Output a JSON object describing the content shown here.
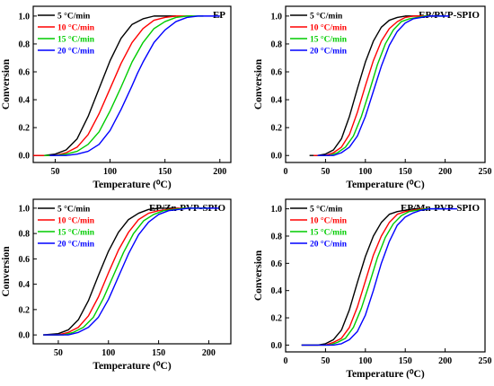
{
  "figure": {
    "panels": [
      "EP",
      "EP/PVP-SPIO",
      "EP/Zn-PVP-SPIO",
      "EP/Mn-PVP-SPIO"
    ]
  },
  "chart_data": [
    {
      "type": "line",
      "title": "EP",
      "xlabel": "Temperature (⁰C)",
      "ylabel": "Conversion",
      "xlim": [
        30,
        210
      ],
      "ylim": [
        -0.05,
        1.07
      ],
      "xticks": [
        "50",
        "100",
        "150",
        "200"
      ],
      "yticks": [
        "0.0",
        "0.2",
        "0.4",
        "0.6",
        "0.8",
        "1.0"
      ],
      "grid": false,
      "legend": "top-left",
      "series": [
        {
          "name": "5 °C/min",
          "color": "#000000",
          "x": [
            30,
            40,
            50,
            60,
            70,
            80,
            90,
            95,
            100,
            110,
            120,
            130,
            140,
            150,
            160
          ],
          "y": [
            0.0,
            0.0,
            0.01,
            0.04,
            0.12,
            0.28,
            0.48,
            0.58,
            0.68,
            0.84,
            0.94,
            0.98,
            1.0,
            1.0,
            1.0
          ]
        },
        {
          "name": "10 °C/min",
          "color": "#ff0000",
          "x": [
            30,
            40,
            50,
            60,
            70,
            80,
            90,
            100,
            105,
            110,
            120,
            130,
            140,
            150,
            160,
            175
          ],
          "y": [
            0.0,
            0.0,
            0.0,
            0.02,
            0.06,
            0.15,
            0.3,
            0.48,
            0.57,
            0.66,
            0.81,
            0.91,
            0.97,
            0.99,
            1.0,
            1.0
          ]
        },
        {
          "name": "15 °C/min",
          "color": "#00cc00",
          "x": [
            40,
            50,
            60,
            70,
            80,
            90,
            100,
            110,
            115,
            120,
            130,
            140,
            150,
            160,
            170,
            185
          ],
          "y": [
            0.0,
            0.0,
            0.01,
            0.03,
            0.08,
            0.17,
            0.32,
            0.49,
            0.58,
            0.67,
            0.81,
            0.91,
            0.96,
            0.99,
            1.0,
            1.0
          ]
        },
        {
          "name": "20 °C/min",
          "color": "#0000ff",
          "x": [
            45,
            60,
            70,
            80,
            90,
            100,
            110,
            120,
            125,
            130,
            140,
            150,
            160,
            170,
            180,
            190,
            200
          ],
          "y": [
            0.0,
            0.0,
            0.01,
            0.03,
            0.08,
            0.18,
            0.33,
            0.5,
            0.59,
            0.67,
            0.81,
            0.9,
            0.96,
            0.99,
            1.0,
            1.0,
            1.0
          ]
        }
      ]
    },
    {
      "type": "line",
      "title": "EP/PVP-SPIO",
      "xlabel": "Temperature (⁰C)",
      "ylabel": "Conversion",
      "xlim": [
        0,
        250
      ],
      "ylim": [
        -0.05,
        1.07
      ],
      "xticks": [
        "0",
        "50",
        "100",
        "150",
        "200",
        "250"
      ],
      "yticks": [
        "0.0",
        "0.2",
        "0.4",
        "0.6",
        "0.8",
        "1.0"
      ],
      "grid": false,
      "legend": "top-left",
      "series": [
        {
          "name": "5 °C/min",
          "color": "#000000",
          "x": [
            30,
            40,
            50,
            60,
            70,
            80,
            90,
            100,
            110,
            120,
            130,
            140,
            150,
            160,
            170
          ],
          "y": [
            0.0,
            0.0,
            0.01,
            0.04,
            0.12,
            0.28,
            0.48,
            0.67,
            0.82,
            0.92,
            0.97,
            0.99,
            1.0,
            1.0,
            1.0
          ]
        },
        {
          "name": "10 °C/min",
          "color": "#ff0000",
          "x": [
            35,
            50,
            60,
            70,
            80,
            90,
            100,
            110,
            120,
            130,
            140,
            150,
            160,
            170,
            180,
            190
          ],
          "y": [
            0.0,
            0.0,
            0.02,
            0.06,
            0.15,
            0.31,
            0.5,
            0.68,
            0.82,
            0.91,
            0.96,
            0.99,
            1.0,
            1.0,
            1.0,
            1.0
          ]
        },
        {
          "name": "15 °C/min",
          "color": "#00cc00",
          "x": [
            40,
            55,
            65,
            75,
            85,
            95,
            105,
            115,
            125,
            135,
            145,
            155,
            165,
            175,
            185,
            200
          ],
          "y": [
            0.0,
            0.0,
            0.02,
            0.06,
            0.14,
            0.28,
            0.46,
            0.65,
            0.8,
            0.9,
            0.96,
            0.98,
            0.99,
            1.0,
            1.0,
            1.0
          ]
        },
        {
          "name": "20 °C/min",
          "color": "#0000ff",
          "x": [
            40,
            60,
            70,
            80,
            90,
            100,
            110,
            120,
            130,
            140,
            150,
            160,
            170,
            180,
            190,
            205
          ],
          "y": [
            0.0,
            0.0,
            0.02,
            0.06,
            0.14,
            0.28,
            0.46,
            0.64,
            0.79,
            0.89,
            0.95,
            0.98,
            0.99,
            1.0,
            1.0,
            1.0
          ]
        }
      ]
    },
    {
      "type": "line",
      "title": "EP/Zn-PVP-SPIO",
      "xlabel": "Temperature (⁰C)",
      "ylabel": "Conversion",
      "xlim": [
        25,
        222
      ],
      "ylim": [
        -0.07,
        1.07
      ],
      "xticks": [
        "50",
        "100",
        "150",
        "200"
      ],
      "yticks": [
        "0.0",
        "0.2",
        "0.4",
        "0.6",
        "0.8",
        "1.0"
      ],
      "grid": false,
      "legend": "top-left",
      "series": [
        {
          "name": "5 °C/min",
          "color": "#000000",
          "x": [
            35,
            50,
            60,
            70,
            80,
            90,
            100,
            110,
            120,
            130,
            140,
            150,
            160,
            170
          ],
          "y": [
            0.0,
            0.01,
            0.04,
            0.12,
            0.27,
            0.47,
            0.66,
            0.81,
            0.91,
            0.96,
            0.99,
            1.0,
            1.0,
            1.0
          ]
        },
        {
          "name": "10 °C/min",
          "color": "#ff0000",
          "x": [
            35,
            50,
            60,
            70,
            80,
            90,
            100,
            110,
            120,
            130,
            140,
            150,
            160,
            170,
            180
          ],
          "y": [
            0.0,
            0.0,
            0.02,
            0.06,
            0.15,
            0.3,
            0.49,
            0.67,
            0.81,
            0.91,
            0.96,
            0.98,
            0.99,
            1.0,
            1.0
          ]
        },
        {
          "name": "15 °C/min",
          "color": "#00cc00",
          "x": [
            35,
            55,
            65,
            75,
            85,
            95,
            105,
            115,
            125,
            135,
            145,
            155,
            165,
            175,
            185,
            200
          ],
          "y": [
            0.0,
            0.0,
            0.02,
            0.06,
            0.14,
            0.29,
            0.47,
            0.65,
            0.8,
            0.9,
            0.95,
            0.98,
            0.99,
            1.0,
            1.0,
            1.0
          ]
        },
        {
          "name": "20 °C/min",
          "color": "#0000ff",
          "x": [
            35,
            60,
            70,
            80,
            90,
            100,
            110,
            120,
            130,
            140,
            150,
            160,
            170,
            180,
            190,
            200,
            210
          ],
          "y": [
            0.0,
            0.0,
            0.02,
            0.06,
            0.14,
            0.28,
            0.46,
            0.64,
            0.79,
            0.89,
            0.95,
            0.98,
            0.99,
            1.0,
            1.0,
            1.0,
            1.0
          ]
        }
      ]
    },
    {
      "type": "line",
      "title": "EP/Mn-PVP-SPIO",
      "xlabel": "Temperature (⁰C)",
      "ylabel": "Conversion",
      "xlim": [
        0,
        250
      ],
      "ylim": [
        -0.05,
        1.07
      ],
      "xticks": [
        "0",
        "50",
        "100",
        "150",
        "200",
        "250"
      ],
      "yticks": [
        "0.0",
        "0.2",
        "0.4",
        "0.6",
        "0.8",
        "1.0"
      ],
      "grid": false,
      "legend": "top-left",
      "series": [
        {
          "name": "5 °C/min",
          "color": "#000000",
          "x": [
            20,
            40,
            50,
            60,
            70,
            80,
            90,
            100,
            110,
            120,
            130,
            140,
            150,
            160,
            170
          ],
          "y": [
            0.0,
            0.0,
            0.01,
            0.04,
            0.11,
            0.26,
            0.46,
            0.65,
            0.8,
            0.9,
            0.96,
            0.98,
            0.99,
            1.0,
            1.0
          ]
        },
        {
          "name": "10 °C/min",
          "color": "#ff0000",
          "x": [
            20,
            50,
            60,
            70,
            80,
            90,
            100,
            110,
            120,
            130,
            140,
            150,
            160,
            170,
            180
          ],
          "y": [
            0.0,
            0.0,
            0.02,
            0.05,
            0.13,
            0.28,
            0.47,
            0.66,
            0.8,
            0.9,
            0.96,
            0.98,
            0.99,
            1.0,
            1.0
          ]
        },
        {
          "name": "15 °C/min",
          "color": "#00cc00",
          "x": [
            20,
            55,
            65,
            75,
            85,
            95,
            105,
            115,
            125,
            135,
            145,
            155,
            165,
            175,
            185,
            200
          ],
          "y": [
            0.0,
            0.0,
            0.02,
            0.05,
            0.13,
            0.27,
            0.45,
            0.64,
            0.79,
            0.89,
            0.95,
            0.98,
            0.99,
            1.0,
            1.0,
            1.0
          ]
        },
        {
          "name": "20 °C/min",
          "color": "#0000ff",
          "x": [
            20,
            60,
            70,
            80,
            90,
            100,
            110,
            120,
            130,
            140,
            150,
            160,
            170,
            180,
            190,
            200,
            215
          ],
          "y": [
            0.0,
            0.0,
            0.01,
            0.04,
            0.1,
            0.22,
            0.4,
            0.6,
            0.76,
            0.88,
            0.94,
            0.97,
            0.99,
            1.0,
            1.0,
            1.0,
            1.0
          ]
        }
      ]
    }
  ]
}
